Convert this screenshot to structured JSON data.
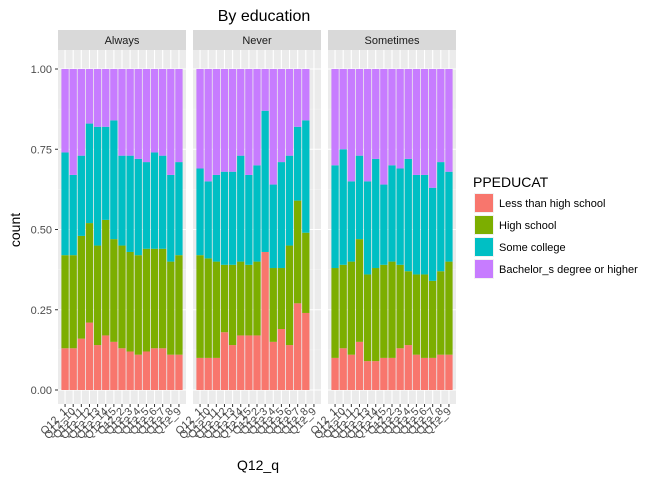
{
  "chart_data": {
    "type": "bar",
    "stacked": true,
    "position": "fill",
    "title": "By education",
    "xlabel": "Q12_q",
    "ylabel": "count",
    "ylim": [
      0,
      1
    ],
    "yticks": [
      "0.00",
      "0.25",
      "0.50",
      "0.75",
      "1.00"
    ],
    "ytick_values": [
      0,
      0.25,
      0.5,
      0.75,
      1
    ],
    "grid": true,
    "legend": {
      "title": "PPEDUCAT",
      "placement": "right",
      "entries": [
        "Less than high school",
        "High school",
        "Some college",
        "Bachelor_s degree or higher"
      ]
    },
    "colors": [
      "#F8766D",
      "#7CAE00",
      "#00BFC4",
      "#C77CFF"
    ],
    "categories": [
      "Q12_1",
      "Q12_10",
      "Q12_11",
      "Q12_12",
      "Q12_13",
      "Q12_14",
      "Q12_15",
      "Q12_2",
      "Q12_3",
      "Q12_4",
      "Q12_5",
      "Q12_6",
      "Q12_7",
      "Q12_8",
      "Q12_9"
    ],
    "panels": [
      {
        "name": "Always",
        "series": [
          {
            "name": "Less than high school",
            "values": [
              0.13,
              0.13,
              0.16,
              0.21,
              0.14,
              0.17,
              0.15,
              0.13,
              0.12,
              0.11,
              0.12,
              0.13,
              0.13,
              0.11,
              0.11
            ]
          },
          {
            "name": "High school",
            "values": [
              0.29,
              0.29,
              0.32,
              0.31,
              0.31,
              0.36,
              0.32,
              0.32,
              0.31,
              0.31,
              0.32,
              0.31,
              0.31,
              0.29,
              0.31
            ]
          },
          {
            "name": "Some college",
            "values": [
              0.32,
              0.25,
              0.25,
              0.31,
              0.37,
              0.29,
              0.37,
              0.28,
              0.3,
              0.3,
              0.27,
              0.3,
              0.29,
              0.27,
              0.29
            ]
          },
          {
            "name": "Bachelor_s degree or higher",
            "values": [
              0.26,
              0.33,
              0.27,
              0.17,
              0.18,
              0.18,
              0.16,
              0.27,
              0.27,
              0.28,
              0.29,
              0.26,
              0.27,
              0.33,
              0.29
            ]
          }
        ]
      },
      {
        "name": "Never",
        "series": [
          {
            "name": "Less than high school",
            "values": [
              0.1,
              0.1,
              0.1,
              0.18,
              0.14,
              0.17,
              0.17,
              0.17,
              0.43,
              0.15,
              0.19,
              0.14,
              0.27,
              0.24,
              0.0
            ]
          },
          {
            "name": "High school",
            "values": [
              0.32,
              0.31,
              0.3,
              0.21,
              0.25,
              0.23,
              0.22,
              0.23,
              0.0,
              0.23,
              0.19,
              0.31,
              0.32,
              0.25,
              0.0
            ]
          },
          {
            "name": "Some college",
            "values": [
              0.27,
              0.24,
              0.27,
              0.29,
              0.29,
              0.33,
              0.28,
              0.3,
              0.44,
              0.26,
              0.33,
              0.28,
              0.23,
              0.35,
              0.0
            ]
          },
          {
            "name": "Bachelor_s degree or higher",
            "values": [
              0.31,
              0.35,
              0.33,
              0.32,
              0.32,
              0.27,
              0.33,
              0.3,
              0.13,
              0.36,
              0.29,
              0.27,
              0.18,
              0.16,
              0.0
            ]
          }
        ]
      },
      {
        "name": "Sometimes",
        "series": [
          {
            "name": "Less than high school",
            "values": [
              0.1,
              0.13,
              0.11,
              0.15,
              0.09,
              0.09,
              0.1,
              0.1,
              0.13,
              0.14,
              0.11,
              0.1,
              0.1,
              0.11,
              0.11
            ]
          },
          {
            "name": "High school",
            "values": [
              0.28,
              0.26,
              0.29,
              0.32,
              0.27,
              0.29,
              0.29,
              0.3,
              0.26,
              0.23,
              0.25,
              0.26,
              0.24,
              0.26,
              0.29
            ]
          },
          {
            "name": "Some college",
            "values": [
              0.32,
              0.36,
              0.25,
              0.26,
              0.29,
              0.34,
              0.25,
              0.3,
              0.3,
              0.35,
              0.31,
              0.31,
              0.29,
              0.34,
              0.28
            ]
          },
          {
            "name": "Bachelor_s degree or higher",
            "values": [
              0.3,
              0.25,
              0.35,
              0.27,
              0.35,
              0.28,
              0.36,
              0.3,
              0.31,
              0.28,
              0.33,
              0.33,
              0.37,
              0.29,
              0.32
            ]
          }
        ]
      }
    ]
  }
}
